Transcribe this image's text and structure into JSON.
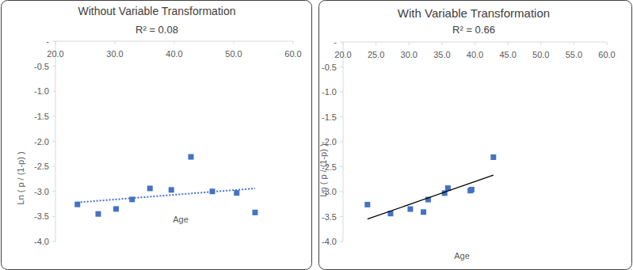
{
  "chart_data": [
    {
      "type": "scatter",
      "title": "Without Variable Transformation",
      "subtitle": "R² = 0.08",
      "x_label": "Age",
      "y_label": "Ln ( p / (1-p) )",
      "xlim": [
        20,
        60
      ],
      "xticks": [
        {
          "value": 20,
          "label": "20.0"
        },
        {
          "value": 30,
          "label": "30.0"
        },
        {
          "value": 40,
          "label": "40.0"
        },
        {
          "value": 50,
          "label": "50.0"
        },
        {
          "value": 60,
          "label": "60.0"
        }
      ],
      "ylim": [
        -4,
        0
      ],
      "yticks": [
        {
          "value": 0,
          "label": "-"
        },
        {
          "value": -0.5,
          "label": "-0.5"
        },
        {
          "value": -1,
          "label": "-1.0"
        },
        {
          "value": -1.5,
          "label": "-1.5"
        },
        {
          "value": -2,
          "label": "-2.0"
        },
        {
          "value": -2.5,
          "label": "-2.5"
        },
        {
          "value": -3,
          "label": "-3.0"
        },
        {
          "value": -3.5,
          "label": "-3.5"
        },
        {
          "value": -4,
          "label": "-4.0"
        }
      ],
      "grid": false,
      "series": [
        {
          "type": "scatter",
          "marker": "square",
          "color": "#4472c4",
          "x": [
            23.7,
            27.2,
            30.2,
            32.9,
            35.9,
            39.5,
            42.8,
            46.4,
            50.5,
            53.6
          ],
          "values": [
            -3.26,
            -3.45,
            -3.35,
            -3.16,
            -2.94,
            -2.97,
            -2.31,
            -3.0,
            -3.03,
            -3.42
          ]
        },
        {
          "type": "line",
          "line_style": "dotted",
          "color": "#4472c4",
          "x": [
            23.7,
            53.6
          ],
          "values": [
            -3.22,
            -2.94
          ]
        }
      ]
    },
    {
      "type": "scatter",
      "title": "With Variable Transformation",
      "subtitle": "R² = 0.66",
      "x_label": "Age",
      "y_label": "Ln ( p / (1-p) )",
      "xlim": [
        20,
        60
      ],
      "xticks": [
        {
          "value": 20,
          "label": "20.0"
        },
        {
          "value": 25,
          "label": "25.0"
        },
        {
          "value": 30,
          "label": "30.0"
        },
        {
          "value": 35,
          "label": "35.0"
        },
        {
          "value": 40,
          "label": "40.0"
        },
        {
          "value": 45,
          "label": "45.0"
        },
        {
          "value": 50,
          "label": "50.0"
        },
        {
          "value": 55,
          "label": "55.0"
        },
        {
          "value": 60,
          "label": "60.0"
        }
      ],
      "ylim": [
        -4,
        0
      ],
      "yticks": [
        {
          "value": 0,
          "label": "-"
        },
        {
          "value": -0.5,
          "label": "-0.5"
        },
        {
          "value": -1,
          "label": "-1.0"
        },
        {
          "value": -1.5,
          "label": "-1.5"
        },
        {
          "value": -2,
          "label": "-2.0"
        },
        {
          "value": -2.5,
          "label": "-2.5"
        },
        {
          "value": -3,
          "label": "-3.0"
        },
        {
          "value": -3.5,
          "label": "-3.5"
        },
        {
          "value": -4,
          "label": "-4.0"
        }
      ],
      "grid": false,
      "series": [
        {
          "type": "scatter",
          "marker": "square",
          "color": "#4472c4",
          "x": [
            23.7,
            27.2,
            30.2,
            32.2,
            32.9,
            35.4,
            35.9,
            39.3,
            39.5,
            42.8
          ],
          "values": [
            -3.26,
            -3.44,
            -3.35,
            -3.41,
            -3.16,
            -3.03,
            -2.93,
            -2.98,
            -2.96,
            -2.31
          ]
        },
        {
          "type": "line",
          "line_style": "solid",
          "color": "#000000",
          "x": [
            23.7,
            42.8
          ],
          "values": [
            -3.55,
            -2.67
          ]
        }
      ]
    }
  ]
}
